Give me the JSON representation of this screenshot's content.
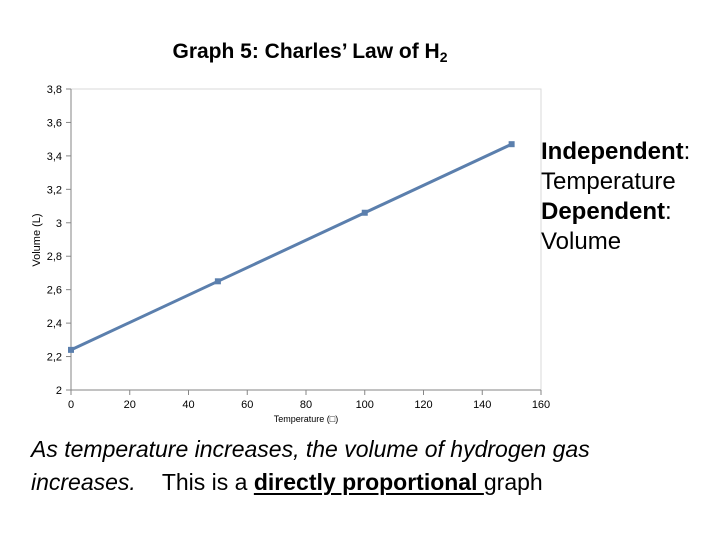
{
  "chart_data": {
    "type": "line",
    "title": "Graph 5: Charles’ Law of H",
    "title_subscript": "2",
    "xlabel": "Temperature (",
    "xlabel_unit_glyph": "□",
    "xlabel_end": ")",
    "ylabel": "Volume (L)",
    "xlim": [
      0,
      160
    ],
    "ylim": [
      2,
      3.8
    ],
    "x_ticks": [
      0,
      20,
      40,
      60,
      80,
      100,
      120,
      140,
      160
    ],
    "x_tick_labels": [
      "0",
      "20",
      "40",
      "60",
      "80",
      "100",
      "120",
      "140",
      "160"
    ],
    "y_ticks": [
      2,
      2.2,
      2.4,
      2.6,
      2.8,
      3,
      3.2,
      3.4,
      3.6,
      3.8
    ],
    "y_tick_labels": [
      "2",
      "2,2",
      "2,4",
      "2,6",
      "2,8",
      "3",
      "3,2",
      "3,4",
      "3,6",
      "3,8"
    ],
    "grid": false,
    "legend": "none",
    "series": [
      {
        "x": [
          0,
          50,
          100,
          150
        ],
        "y": [
          2.24,
          2.65,
          3.06,
          3.47
        ],
        "color": "#5b7fad",
        "marker": "square"
      }
    ]
  },
  "annotation": {
    "independent_label": "Independent",
    "independent_colon": ":",
    "independent_value": "Temperature",
    "dependent_label": "Dependent",
    "dependent_colon": ":",
    "dependent_value": "Volume"
  },
  "conclusion": {
    "line1": "As temperature increases, the volume of hydrogen gas increases.",
    "line2_prefix": "This is a ",
    "line2_emphasis": "directly proportional ",
    "line2_suffix": "graph"
  }
}
